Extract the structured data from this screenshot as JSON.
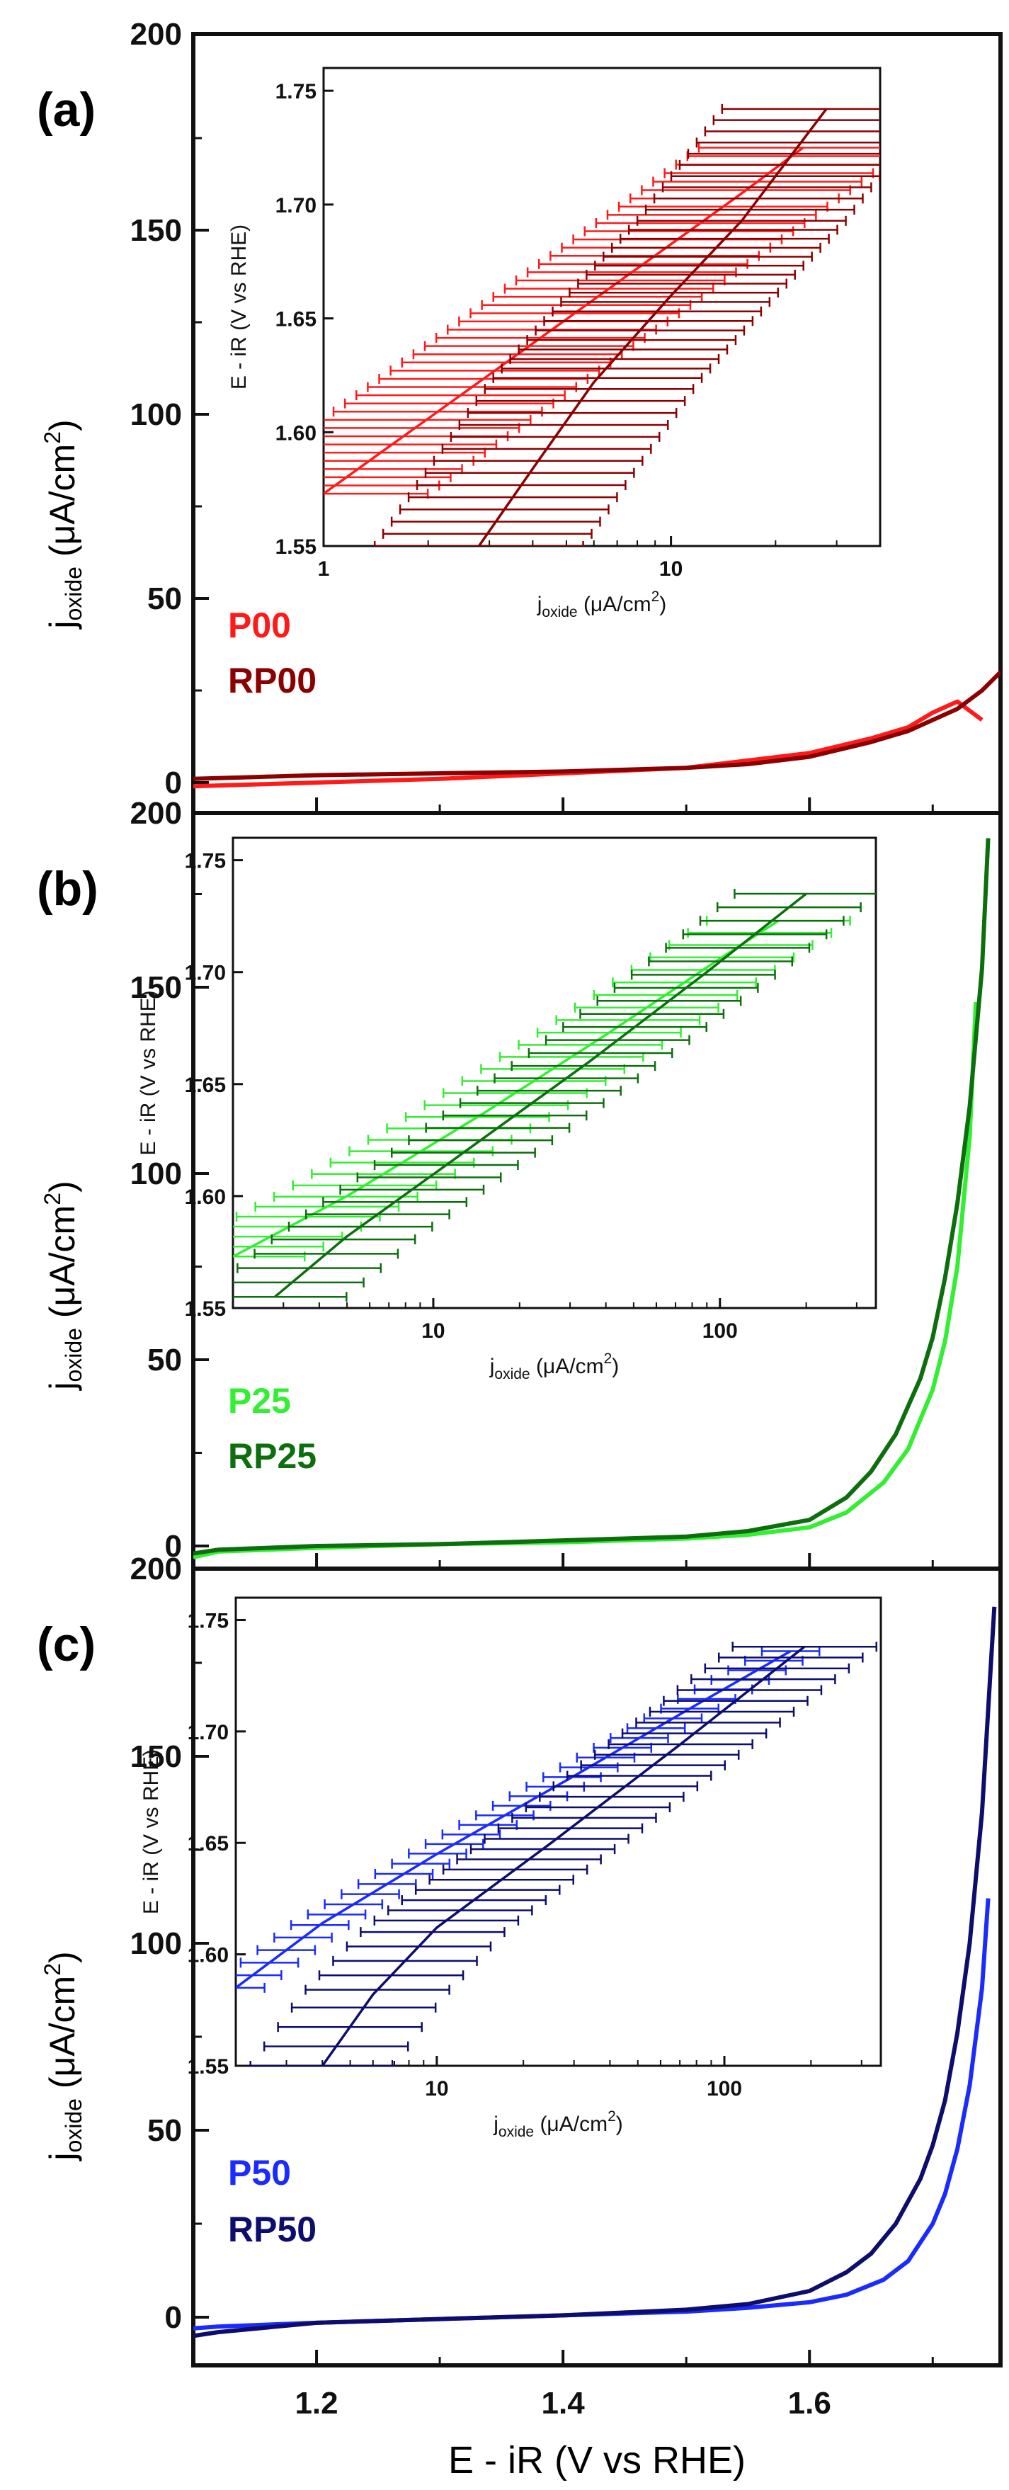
{
  "axis_labels": {
    "main_y_main": "j",
    "main_y_sub": "oxide",
    "main_y_unit": "(μA/cm",
    "main_y_sup": "2",
    "main_y_close": ")",
    "main_x": "E - iR (V vs RHE)",
    "inset_y": "E - iR (V vs RHE)",
    "inset_x_main": "j",
    "inset_x_sub": "oxide",
    "inset_x_unit": "(μA/cm",
    "inset_x_sup": "2",
    "inset_x_close": ")"
  },
  "chart_data": [
    {
      "type": "line",
      "panel_label": "(a)",
      "xlabel": "E - iR (V vs RHE)",
      "ylabel": "j_oxide (μA/cm²)",
      "xlim": [
        1.1,
        1.755
      ],
      "ylim": [
        -5,
        200
      ],
      "xticks": [
        1.2,
        1.4,
        1.6
      ],
      "xtick_labels": [
        "1.2",
        "1.4",
        "1.6"
      ],
      "yticks": [
        0,
        50,
        100,
        150
      ],
      "ytick_labels": [
        "0",
        "50",
        "100",
        "150"
      ],
      "top_label": "200",
      "series": [
        {
          "name": "P00",
          "color": "#ff1a1a",
          "x": [
            1.1,
            1.15,
            1.2,
            1.3,
            1.4,
            1.5,
            1.55,
            1.6,
            1.65,
            1.68,
            1.7,
            1.72,
            1.74
          ],
          "y": [
            -1,
            -0.5,
            0,
            1,
            2.5,
            4,
            6,
            8,
            12,
            15,
            19,
            22,
            17
          ]
        },
        {
          "name": "RP00",
          "color": "#8b0000",
          "x": [
            1.1,
            1.15,
            1.2,
            1.3,
            1.4,
            1.5,
            1.55,
            1.6,
            1.65,
            1.68,
            1.7,
            1.72,
            1.74,
            1.755
          ],
          "y": [
            1,
            1.5,
            2,
            2.5,
            3,
            4,
            5,
            7,
            11,
            14,
            17,
            20,
            25,
            30
          ]
        }
      ],
      "inset": {
        "xscale": "log",
        "xlim": [
          1,
          40
        ],
        "ylim": [
          1.55,
          1.76
        ],
        "xticks": [
          1,
          10
        ],
        "xtick_labels": [
          "1",
          "10"
        ],
        "yticks": [
          1.55,
          1.6,
          1.65,
          1.7,
          1.75
        ],
        "ytick_labels": [
          "1.55",
          "1.60",
          "1.65",
          "1.70",
          "1.75"
        ],
        "series": [
          {
            "name": "P00",
            "color": "#ff1a1a",
            "x": [
              1,
              2,
              4,
              8,
              16,
              24
            ],
            "y": [
              1.573,
              1.606,
              1.639,
              1.672,
              1.705,
              1.725
            ],
            "err": 0.3,
            "bar_count": 43
          },
          {
            "name": "RP00",
            "color": "#8b0000",
            "x": [
              2.8,
              4,
              6,
              10,
              16,
              28
            ],
            "y": [
              1.55,
              1.584,
              1.622,
              1.66,
              1.693,
              1.742
            ],
            "err": 0.3,
            "bar_count": 42
          }
        ]
      }
    },
    {
      "type": "line",
      "panel_label": "(b)",
      "xlabel": "E - iR (V vs RHE)",
      "ylabel": "j_oxide (μA/cm²)",
      "xlim": [
        1.1,
        1.755
      ],
      "ylim": [
        -5,
        200
      ],
      "xticks": [
        1.2,
        1.4,
        1.6
      ],
      "xtick_labels": [
        "1.2",
        "1.4",
        "1.6"
      ],
      "yticks": [
        0,
        50,
        100,
        150
      ],
      "ytick_labels": [
        "0",
        "50",
        "100",
        "150"
      ],
      "top_label": "200",
      "series": [
        {
          "name": "P25",
          "color": "#33ee33",
          "x": [
            1.1,
            1.12,
            1.2,
            1.3,
            1.4,
            1.5,
            1.55,
            1.6,
            1.63,
            1.66,
            1.68,
            1.7,
            1.71,
            1.72,
            1.73,
            1.735
          ],
          "y": [
            -3,
            -1.5,
            -0.5,
            0.5,
            1,
            2,
            3,
            5,
            9,
            17,
            26,
            42,
            55,
            75,
            110,
            146
          ]
        },
        {
          "name": "RP25",
          "color": "#0d6e0d",
          "x": [
            1.1,
            1.12,
            1.2,
            1.3,
            1.4,
            1.5,
            1.55,
            1.6,
            1.63,
            1.65,
            1.67,
            1.69,
            1.7,
            1.71,
            1.72,
            1.73,
            1.74,
            1.745
          ],
          "y": [
            -2,
            -1,
            0,
            0.5,
            1.5,
            2.5,
            4,
            7,
            13,
            20,
            30,
            45,
            56,
            72,
            92,
            118,
            155,
            190
          ]
        }
      ],
      "inset": {
        "xscale": "log",
        "xlim": [
          2,
          350
        ],
        "ylim": [
          1.55,
          1.76
        ],
        "xticks": [
          10,
          100
        ],
        "xtick_labels": [
          "10",
          "100"
        ],
        "yticks": [
          1.55,
          1.6,
          1.65,
          1.7,
          1.75
        ],
        "ytick_labels": [
          "1.55",
          "1.60",
          "1.65",
          "1.70",
          "1.75"
        ],
        "series": [
          {
            "name": "P25",
            "color": "#33ee33",
            "x": [
              2,
              5,
              15,
              40,
              100,
              160
            ],
            "y": [
              1.573,
              1.6,
              1.637,
              1.672,
              1.706,
              1.723
            ],
            "err": 0.25,
            "bar_count": 30
          },
          {
            "name": "RP25",
            "color": "#0d6e0d",
            "x": [
              2.8,
              5,
              12,
              35,
              90,
              200
            ],
            "y": [
              1.555,
              1.582,
              1.617,
              1.66,
              1.7,
              1.735
            ],
            "err": 0.25,
            "bar_count": 32
          }
        ]
      }
    },
    {
      "type": "line",
      "panel_label": "(c)",
      "xlabel": "E - iR (V vs RHE)",
      "ylabel": "j_oxide (μA/cm²)",
      "xlim": [
        1.1,
        1.755
      ],
      "ylim": [
        -5,
        200
      ],
      "xticks": [
        1.2,
        1.4,
        1.6
      ],
      "xtick_labels": [
        "1.2",
        "1.4",
        "1.6"
      ],
      "yticks": [
        0,
        50,
        100,
        150
      ],
      "ytick_labels": [
        "0",
        "50",
        "100",
        "150"
      ],
      "top_label": "200",
      "series": [
        {
          "name": "P50",
          "color": "#1a2bff",
          "x": [
            1.1,
            1.12,
            1.2,
            1.3,
            1.4,
            1.5,
            1.55,
            1.6,
            1.63,
            1.66,
            1.68,
            1.7,
            1.71,
            1.72,
            1.73,
            1.74,
            1.745
          ],
          "y": [
            -3,
            -2.5,
            -1.5,
            -0.5,
            0.5,
            1.5,
            2.5,
            4,
            6,
            10,
            15,
            25,
            33,
            45,
            62,
            88,
            112
          ]
        },
        {
          "name": "RP50",
          "color": "#0d0d6e",
          "x": [
            1.1,
            1.12,
            1.2,
            1.3,
            1.4,
            1.5,
            1.55,
            1.6,
            1.63,
            1.65,
            1.67,
            1.69,
            1.7,
            1.71,
            1.72,
            1.73,
            1.74,
            1.75
          ],
          "y": [
            -5,
            -4,
            -1.5,
            -0.5,
            0.5,
            2,
            3.5,
            7,
            12,
            17,
            25,
            37,
            46,
            58,
            76,
            100,
            135,
            190
          ]
        }
      ],
      "inset": {
        "xscale": "log",
        "xlim": [
          2,
          350
        ],
        "ylim": [
          1.55,
          1.76
        ],
        "xticks": [
          10,
          100
        ],
        "xtick_labels": [
          "10",
          "100"
        ],
        "yticks": [
          1.55,
          1.6,
          1.65,
          1.7,
          1.75
        ],
        "ytick_labels": [
          "1.55",
          "1.60",
          "1.65",
          "1.70",
          "1.75"
        ],
        "series": [
          {
            "name": "P50",
            "color": "#1a2bff",
            "x": [
              2,
              4,
              10,
              30,
              80,
              170
            ],
            "y": [
              1.585,
              1.614,
              1.645,
              1.68,
              1.712,
              1.736
            ],
            "err": 0.1,
            "bar_count": 34
          },
          {
            "name": "RP50",
            "color": "#0d0d6e",
            "x": [
              4,
              6,
              10,
              25,
              70,
              190
            ],
            "y": [
              1.55,
              1.582,
              1.612,
              1.65,
              1.694,
              1.738
            ],
            "err": 0.25,
            "bar_count": 36
          }
        ]
      }
    }
  ]
}
